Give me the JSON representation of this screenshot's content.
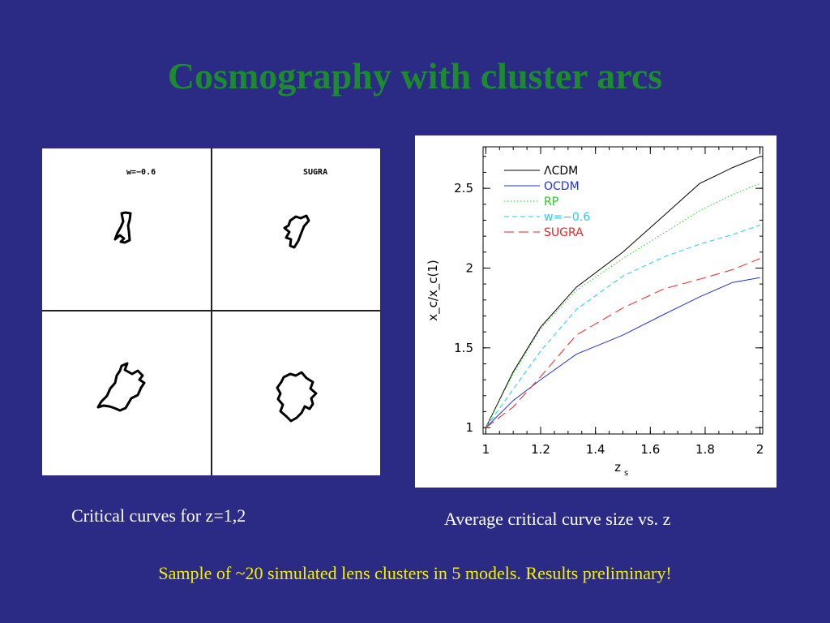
{
  "slide": {
    "title": "Cosmography with cluster arcs",
    "caption_left": "Critical curves for z=1,2",
    "caption_right": "Average critical curve size vs. z",
    "footer": "Sample of ~20 simulated lens clusters in 5 models. Results preliminary!"
  },
  "panels": {
    "labels": [
      "w=−0.6",
      "SUGRA"
    ]
  },
  "colors": {
    "background": "#2b2b86",
    "title": "#1c8a2e",
    "footer": "#f4f000"
  },
  "chart_data": {
    "type": "line",
    "xlabel": "z",
    "xlabel_sub": "s",
    "ylabel": "x_c/x_c(1)",
    "xlim": [
      0.99,
      2.01
    ],
    "ylim": [
      0.96,
      2.76
    ],
    "xticks": [
      1,
      1.2,
      1.4,
      1.6,
      1.8,
      2
    ],
    "xtick_labels": [
      "1",
      "1.2",
      "1.4",
      "1.6",
      "1.8",
      "2"
    ],
    "yticks": [
      1,
      1.5,
      2,
      2.5
    ],
    "ytick_labels": [
      "1",
      "1.5",
      "2",
      "2.5"
    ],
    "grid": false,
    "legend": "top-left",
    "series": [
      {
        "name": "ΛCDM",
        "color": "#000000",
        "dash": "solid",
        "x": [
          1,
          1.1,
          1.2,
          1.33,
          1.5,
          1.65,
          1.78,
          1.9,
          2
        ],
        "y": [
          1,
          1.35,
          1.63,
          1.88,
          2.1,
          2.33,
          2.53,
          2.63,
          2.7
        ]
      },
      {
        "name": "OCDM",
        "color": "#2233cc",
        "dash": "solid",
        "x": [
          1,
          1.1,
          1.2,
          1.33,
          1.5,
          1.65,
          1.78,
          1.9,
          2
        ],
        "y": [
          1,
          1.17,
          1.3,
          1.46,
          1.58,
          1.71,
          1.82,
          1.91,
          1.94
        ]
      },
      {
        "name": "RP",
        "color": "#22cc22",
        "dash": "dot",
        "x": [
          1,
          1.1,
          1.2,
          1.33,
          1.5,
          1.65,
          1.78,
          1.9,
          2
        ],
        "y": [
          1,
          1.34,
          1.62,
          1.86,
          2.06,
          2.22,
          2.36,
          2.46,
          2.53
        ]
      },
      {
        "name": "w=−0.6",
        "color": "#22ccee",
        "dash": "dash",
        "x": [
          1,
          1.1,
          1.2,
          1.33,
          1.5,
          1.65,
          1.78,
          1.9,
          2
        ],
        "y": [
          1,
          1.24,
          1.48,
          1.74,
          1.95,
          2.07,
          2.15,
          2.21,
          2.27
        ]
      },
      {
        "name": "SUGRA",
        "color": "#ee2222",
        "dash": "longdash",
        "x": [
          1,
          1.1,
          1.2,
          1.33,
          1.5,
          1.65,
          1.78,
          1.9,
          2
        ],
        "y": [
          1,
          1.13,
          1.32,
          1.58,
          1.75,
          1.87,
          1.93,
          1.99,
          2.06
        ]
      }
    ]
  }
}
